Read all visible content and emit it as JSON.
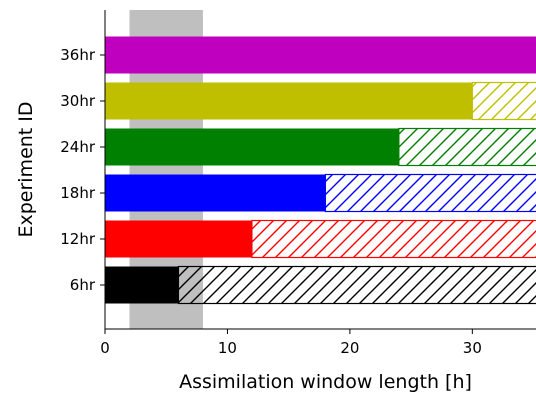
{
  "chart_data": {
    "type": "bar",
    "orientation": "horizontal",
    "title": "",
    "xlabel": "Assimilation window length [h]",
    "ylabel": "Experiment ID",
    "xlim": [
      0,
      35.2
    ],
    "xticks": [
      0,
      10,
      20,
      30
    ],
    "shaded_region": {
      "x_start": 2,
      "x_end": 8,
      "color": "#bfbfbf"
    },
    "categories": [
      "6hr",
      "12hr",
      "18hr",
      "24hr",
      "30hr",
      "36hr"
    ],
    "series": [
      {
        "values": [
          6,
          12,
          18,
          24,
          30,
          36
        ],
        "fill": "solid",
        "colors": [
          "#000000",
          "#ff0000",
          "#0000ff",
          "#008000",
          "#bfbf00",
          "#bf00bf"
        ]
      },
      {
        "values": [
          30,
          24,
          18,
          12,
          6,
          0
        ],
        "fill": "hatched",
        "colors": [
          "#000000",
          "#ff0000",
          "#0000ff",
          "#008000",
          "#bfbf00",
          "#bf00bf"
        ]
      }
    ]
  }
}
